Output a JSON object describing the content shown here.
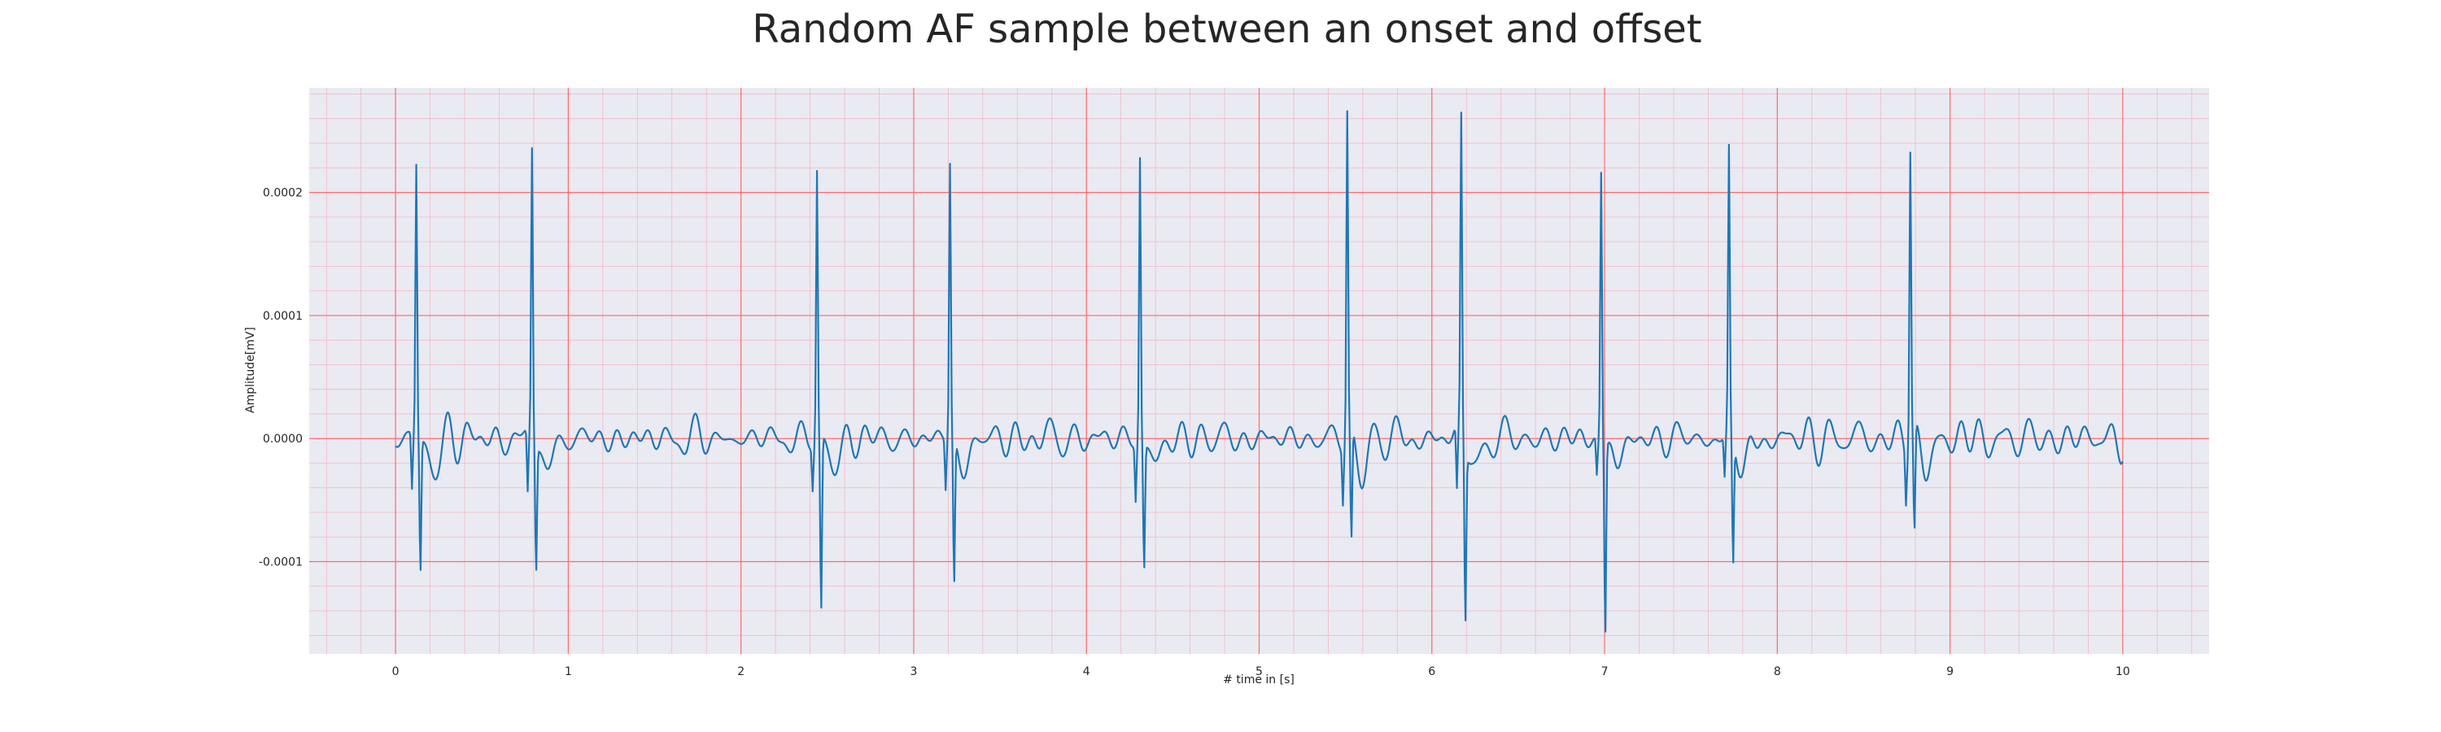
{
  "chart_data": {
    "type": "line",
    "title": "Random AF sample between an onset and offset",
    "xlabel": "# time in [s]",
    "ylabel": "Amplitude[mV]",
    "xlim": [
      -0.5,
      10.5
    ],
    "ylim": [
      -0.000175,
      0.000285
    ],
    "x_ticks": [
      0,
      1,
      2,
      3,
      4,
      5,
      6,
      7,
      8,
      9,
      10
    ],
    "x_tick_labels": [
      "0",
      "1",
      "2",
      "3",
      "4",
      "5",
      "6",
      "7",
      "8",
      "9",
      "10"
    ],
    "y_ticks": [
      -0.0001,
      0.0,
      0.0001,
      0.0002
    ],
    "y_tick_labels": [
      "-0.0001",
      "0.0000",
      "0.0001",
      "0.0002"
    ],
    "x_minor_step": 0.2,
    "y_minor_step": 2e-05,
    "grid": true,
    "legend": "none",
    "colors": {
      "line": "#1f77b4",
      "background": "#eaeaf2",
      "major_grid": "#ff6b6b",
      "minor_grid": "#f4b8c4",
      "text": "#262626"
    },
    "sample_rate_hz": 200,
    "duration_s": 10,
    "beats": [
      {
        "t": 0.12,
        "r": 0.000222,
        "s": -0.000108,
        "q": -4.5e-05
      },
      {
        "t": 0.79,
        "r": 0.000236,
        "s": -0.000101,
        "q": -5e-05
      },
      {
        "t": 2.44,
        "r": 0.000218,
        "s": -0.000143,
        "q": -3.5e-05
      },
      {
        "t": 3.21,
        "r": 0.000222,
        "s": -0.000119,
        "q": -4e-05
      },
      {
        "t": 4.31,
        "r": 0.000233,
        "s": -0.000101,
        "q": -4.5e-05
      },
      {
        "t": 5.51,
        "r": 0.000263,
        "s": -9.2e-05,
        "q": -4.5e-05
      },
      {
        "t": 6.17,
        "r": 0.00026,
        "s": -0.000138,
        "q": -5.2e-05
      },
      {
        "t": 6.98,
        "r": 0.000222,
        "s": -0.000154,
        "q": -3e-05
      },
      {
        "t": 7.72,
        "r": 0.000227,
        "s": -0.000103,
        "q": -3.5e-05
      },
      {
        "t": 8.77,
        "r": 0.000241,
        "s": -8.5e-05,
        "q": -4e-05
      }
    ],
    "noise_seed": 7,
    "baseline_amplitude": 1.3e-05
  }
}
